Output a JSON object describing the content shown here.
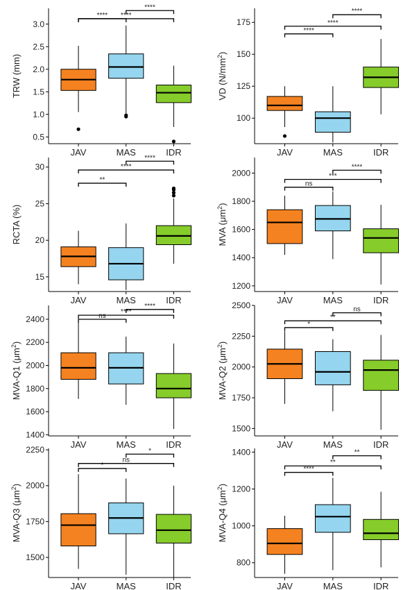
{
  "colors": {
    "JAV": "#f58220",
    "MAS": "#95d5ef",
    "IDR": "#86cc2a",
    "axis": "#000000",
    "text": "#222222"
  },
  "chart_data": [
    {
      "type": "boxplot",
      "ylabel_main": "TRW (mm)",
      "ylabel_sup": "",
      "ylabel_post": "",
      "categories": [
        "JAV",
        "MAS",
        "IDR"
      ],
      "yticks": [
        0.5,
        1.0,
        1.5,
        2.0,
        2.5,
        3.0
      ],
      "ytick_labels": [
        "0.5",
        "1.0",
        "1.5",
        "2.0",
        "2.5",
        "3.0"
      ],
      "ylim": [
        0.35,
        3.35
      ],
      "boxes": [
        {
          "min": 1.05,
          "q1": 1.53,
          "median": 1.77,
          "q3": 2.0,
          "max": 2.52,
          "outliers": [
            0.67
          ]
        },
        {
          "min": 1.02,
          "q1": 1.8,
          "median": 2.05,
          "q3": 2.34,
          "max": 2.97,
          "outliers": [
            0.95,
            0.98
          ]
        },
        {
          "min": 0.72,
          "q1": 1.26,
          "median": 1.48,
          "q3": 1.65,
          "max": 2.08,
          "outliers": [
            0.4
          ]
        }
      ],
      "brackets": [
        {
          "from": 0,
          "to": 1,
          "label": "****",
          "y": 3.12
        },
        {
          "from": 0,
          "to": 2,
          "label": "****",
          "y": 3.12
        },
        {
          "from": 1,
          "to": 2,
          "label": "****",
          "y": 3.3
        }
      ]
    },
    {
      "type": "boxplot",
      "ylabel_main": "VD (N/mm",
      "ylabel_sup": "2",
      "ylabel_post": ")",
      "categories": [
        "JAV",
        "MAS",
        "IDR"
      ],
      "yticks": [
        100,
        125,
        150,
        175
      ],
      "ytick_labels": [
        "100",
        "125",
        "150",
        "175"
      ],
      "ylim": [
        80,
        186
      ],
      "boxes": [
        {
          "min": 93,
          "q1": 106,
          "median": 110,
          "q3": 117,
          "max": 125,
          "outliers": [
            86
          ]
        },
        {
          "min": 81,
          "q1": 89,
          "median": 100,
          "q3": 105,
          "max": 125,
          "outliers": []
        },
        {
          "min": 103,
          "q1": 124,
          "median": 132,
          "q3": 140,
          "max": 162,
          "outliers": []
        }
      ],
      "brackets": [
        {
          "from": 0,
          "to": 1,
          "label": "****",
          "y": 166
        },
        {
          "from": 0,
          "to": 2,
          "label": "****",
          "y": 172
        },
        {
          "from": 1,
          "to": 2,
          "label": "****",
          "y": 181
        }
      ]
    },
    {
      "type": "boxplot",
      "ylabel_main": "RCTA (%)",
      "ylabel_sup": "",
      "ylabel_post": "",
      "categories": [
        "JAV",
        "MAS",
        "IDR"
      ],
      "yticks": [
        15,
        20,
        25,
        30
      ],
      "ytick_labels": [
        "15",
        "20",
        "25",
        "30"
      ],
      "ylim": [
        13,
        31.3
      ],
      "boxes": [
        {
          "min": 14,
          "q1": 16.4,
          "median": 17.8,
          "q3": 19.1,
          "max": 21.3,
          "outliers": []
        },
        {
          "min": 13.2,
          "q1": 14.6,
          "median": 16.8,
          "q3": 19.0,
          "max": 22.3,
          "outliers": []
        },
        {
          "min": 16.8,
          "q1": 19.4,
          "median": 20.6,
          "q3": 22.0,
          "max": 25.7,
          "outliers": [
            26.1,
            26.5,
            26.9,
            27.1
          ]
        }
      ],
      "brackets": [
        {
          "from": 0,
          "to": 1,
          "label": "**",
          "y": 27.8
        },
        {
          "from": 0,
          "to": 2,
          "label": "****",
          "y": 29.6
        },
        {
          "from": 1,
          "to": 2,
          "label": "****",
          "y": 30.8
        }
      ]
    },
    {
      "type": "boxplot",
      "ylabel_main": "MVA (μm",
      "ylabel_sup": "2",
      "ylabel_post": ")",
      "categories": [
        "JAV",
        "MAS",
        "IDR"
      ],
      "yticks": [
        1200,
        1400,
        1600,
        1800,
        2000
      ],
      "ytick_labels": [
        "1200",
        "1400",
        "1600",
        "1800",
        "2000"
      ],
      "ylim": [
        1160,
        2110
      ],
      "boxes": [
        {
          "min": 1420,
          "q1": 1500,
          "median": 1650,
          "q3": 1740,
          "max": 1840,
          "outliers": []
        },
        {
          "min": 1390,
          "q1": 1590,
          "median": 1675,
          "q3": 1770,
          "max": 1870,
          "outliers": []
        },
        {
          "min": 1210,
          "q1": 1435,
          "median": 1540,
          "q3": 1605,
          "max": 1775,
          "outliers": []
        }
      ],
      "brackets": [
        {
          "from": 0,
          "to": 1,
          "label": "ns",
          "y": 1900
        },
        {
          "from": 0,
          "to": 2,
          "label": "***",
          "y": 1955
        },
        {
          "from": 1,
          "to": 2,
          "label": "****",
          "y": 2020
        }
      ]
    },
    {
      "type": "boxplot",
      "ylabel_main": "MVA-Q1 (μm",
      "ylabel_sup": "2",
      "ylabel_post": ")",
      "categories": [
        "JAV",
        "MAS",
        "IDR"
      ],
      "yticks": [
        1400,
        1600,
        1800,
        2000,
        2200,
        2400
      ],
      "ytick_labels": [
        "1400",
        "1600",
        "1800",
        "2000",
        "2200",
        "2400"
      ],
      "ylim": [
        1390,
        2520
      ],
      "boxes": [
        {
          "min": 1710,
          "q1": 1880,
          "median": 1980,
          "q3": 2110,
          "max": 2380,
          "outliers": []
        },
        {
          "min": 1660,
          "q1": 1840,
          "median": 1980,
          "q3": 2110,
          "max": 2250,
          "outliers": []
        },
        {
          "min": 1450,
          "q1": 1720,
          "median": 1800,
          "q3": 1930,
          "max": 2190,
          "outliers": []
        }
      ],
      "brackets": [
        {
          "from": 0,
          "to": 1,
          "label": "ns",
          "y": 2400
        },
        {
          "from": 0,
          "to": 2,
          "label": "****",
          "y": 2435
        },
        {
          "from": 1,
          "to": 2,
          "label": "****",
          "y": 2485
        }
      ]
    },
    {
      "type": "boxplot",
      "ylabel_main": "MVA-Q2 (μm",
      "ylabel_sup": "2",
      "ylabel_post": ")",
      "categories": [
        "JAV",
        "MAS",
        "IDR"
      ],
      "yticks": [
        1500,
        1750,
        2000,
        2250,
        2500
      ],
      "ytick_labels": [
        "1500",
        "1750",
        "2000",
        "2250",
        "2500"
      ],
      "ylim": [
        1440,
        2500
      ],
      "boxes": [
        {
          "min": 1700,
          "q1": 1905,
          "median": 2025,
          "q3": 2145,
          "max": 2290,
          "outliers": []
        },
        {
          "min": 1640,
          "q1": 1855,
          "median": 1960,
          "q3": 2125,
          "max": 2225,
          "outliers": []
        },
        {
          "min": 1490,
          "q1": 1810,
          "median": 1975,
          "q3": 2055,
          "max": 2260,
          "outliers": []
        }
      ],
      "brackets": [
        {
          "from": 0,
          "to": 1,
          "label": "*",
          "y": 2320
        },
        {
          "from": 0,
          "to": 2,
          "label": "**",
          "y": 2375
        },
        {
          "from": 1,
          "to": 2,
          "label": "ns",
          "y": 2440
        }
      ]
    },
    {
      "type": "boxplot",
      "ylabel_main": "MVA-Q3 (μm",
      "ylabel_sup": "2",
      "ylabel_post": ")",
      "categories": [
        "JAV",
        "MAS",
        "IDR"
      ],
      "yticks": [
        1500,
        1750,
        2000,
        2250
      ],
      "ytick_labels": [
        "1500",
        "1750",
        "2000",
        "2250"
      ],
      "ylim": [
        1360,
        2260
      ],
      "boxes": [
        {
          "min": 1420,
          "q1": 1580,
          "median": 1725,
          "q3": 1805,
          "max": 2080,
          "outliers": []
        },
        {
          "min": 1380,
          "q1": 1665,
          "median": 1775,
          "q3": 1880,
          "max": 2050,
          "outliers": []
        },
        {
          "min": 1360,
          "q1": 1600,
          "median": 1690,
          "q3": 1800,
          "max": 2000,
          "outliers": []
        }
      ],
      "brackets": [
        {
          "from": 0,
          "to": 1,
          "label": "*",
          "y": 2120
        },
        {
          "from": 0,
          "to": 2,
          "label": "ns",
          "y": 2155
        },
        {
          "from": 1,
          "to": 2,
          "label": "*",
          "y": 2220
        }
      ]
    },
    {
      "type": "boxplot",
      "ylabel_main": "MVA-Q4 (μm",
      "ylabel_sup": "2",
      "ylabel_post": ")",
      "categories": [
        "JAV",
        "MAS",
        "IDR"
      ],
      "yticks": [
        800,
        1000,
        1200,
        1400
      ],
      "ytick_labels": [
        "800",
        "1000",
        "1200",
        "1400"
      ],
      "ylim": [
        720,
        1420
      ],
      "boxes": [
        {
          "min": 740,
          "q1": 845,
          "median": 905,
          "q3": 985,
          "max": 1055,
          "outliers": []
        },
        {
          "min": 760,
          "q1": 965,
          "median": 1050,
          "q3": 1115,
          "max": 1260,
          "outliers": []
        },
        {
          "min": 775,
          "q1": 925,
          "median": 960,
          "q3": 1035,
          "max": 1185,
          "outliers": []
        }
      ],
      "brackets": [
        {
          "from": 0,
          "to": 1,
          "label": "****",
          "y": 1290
        },
        {
          "from": 0,
          "to": 2,
          "label": "**",
          "y": 1325
        },
        {
          "from": 1,
          "to": 2,
          "label": "**",
          "y": 1380
        }
      ]
    }
  ]
}
